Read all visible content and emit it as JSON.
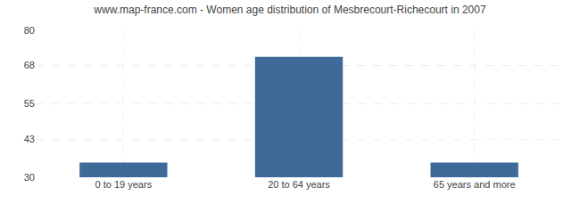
{
  "chart_data": {
    "type": "bar",
    "title": "www.map-france.com - Women age distribution of Mesbrecourt-Richecourt in 2007",
    "categories": [
      "0 to 19 years",
      "20 to 64 years",
      "65 years and more"
    ],
    "values": [
      35,
      71,
      35
    ],
    "color": "#3d6a99",
    "ylim": [
      30,
      80
    ],
    "yticks": [
      30,
      43,
      55,
      68,
      80
    ],
    "grid": true
  }
}
